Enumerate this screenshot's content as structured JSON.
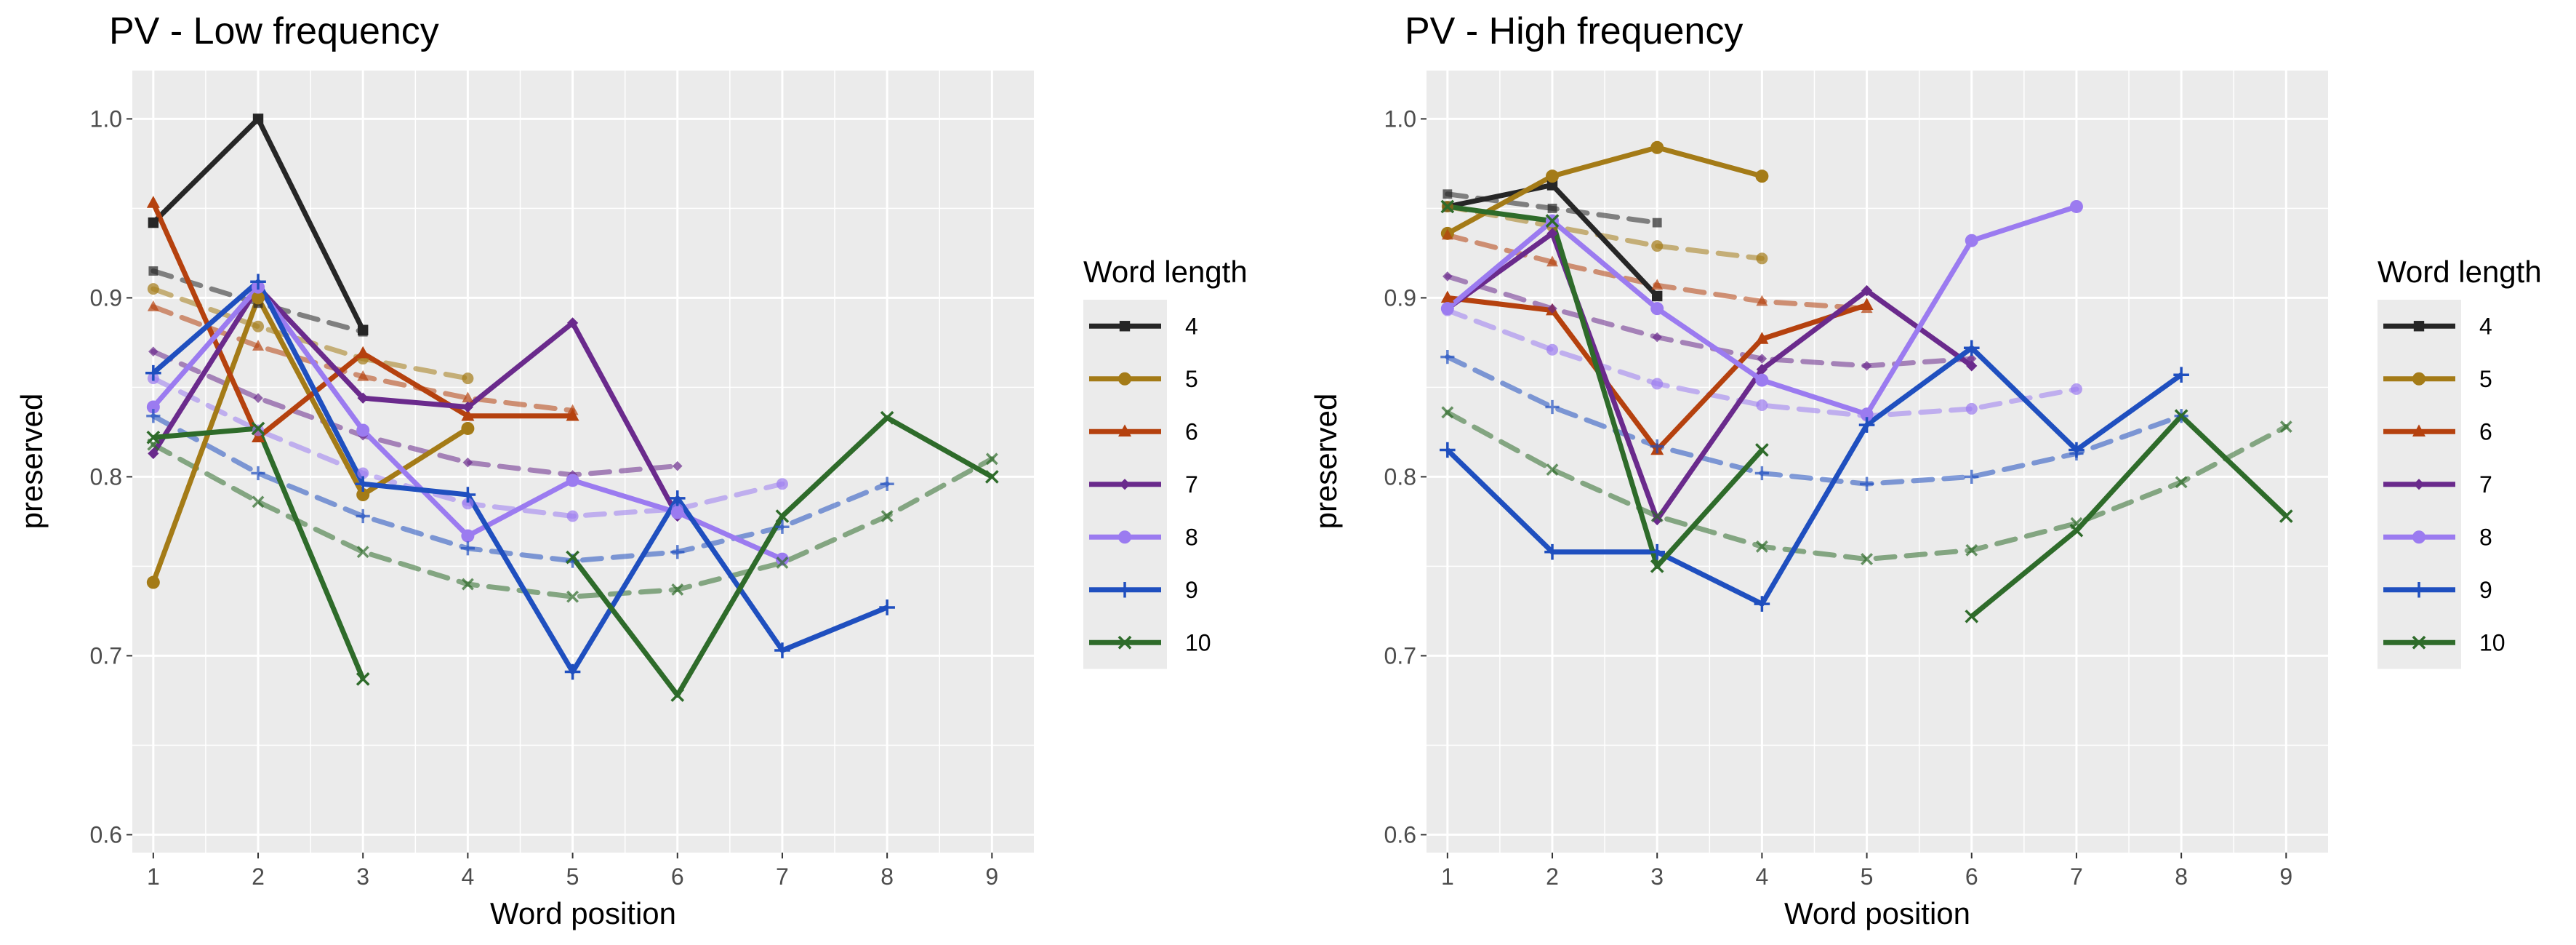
{
  "legend": {
    "title": "Word length",
    "placement": "right",
    "entries": [
      {
        "label": "4",
        "color": "#262626",
        "marker": "square"
      },
      {
        "label": "5",
        "color": "#a47b17",
        "marker": "circle"
      },
      {
        "label": "6",
        "color": "#b5410e",
        "marker": "triangle"
      },
      {
        "label": "7",
        "color": "#6a2a8c",
        "marker": "diamond"
      },
      {
        "label": "8",
        "color": "#9b7bf0",
        "marker": "circle"
      },
      {
        "label": "9",
        "color": "#1f4fbf",
        "marker": "plus"
      },
      {
        "label": "10",
        "color": "#2e6b2a",
        "marker": "cross"
      }
    ]
  },
  "chart_data": [
    {
      "type": "line",
      "title": "PV - Low frequency",
      "xlabel": "Word position",
      "ylabel": "preserved",
      "xlim": [
        0.8,
        9.4
      ],
      "ylim": [
        0.59,
        1.027
      ],
      "x_ticks": [
        1,
        2,
        3,
        4,
        5,
        6,
        7,
        8,
        9
      ],
      "y_ticks": [
        0.6,
        0.7,
        0.8,
        0.9,
        1.0
      ],
      "y_tick_labels": [
        "0.6",
        "0.7",
        "0.8",
        "0.9",
        "1.0"
      ],
      "grid": true,
      "series": [
        {
          "name": "4",
          "observed": [
            [
              1,
              0.942
            ],
            [
              2,
              1.0
            ],
            [
              3,
              0.882
            ]
          ],
          "fitted": [
            [
              1,
              0.915
            ],
            [
              2,
              0.897
            ],
            [
              3,
              0.881
            ]
          ]
        },
        {
          "name": "5",
          "observed": [
            [
              1,
              0.741
            ],
            [
              2,
              0.9
            ],
            [
              3,
              0.79
            ],
            [
              4,
              0.827
            ]
          ],
          "fitted": [
            [
              1,
              0.905
            ],
            [
              2,
              0.884
            ],
            [
              3,
              0.866
            ],
            [
              4,
              0.855
            ]
          ]
        },
        {
          "name": "6",
          "observed": [
            [
              1,
              0.953
            ],
            [
              2,
              0.822
            ],
            [
              3,
              0.869
            ],
            [
              4,
              0.834
            ],
            [
              5,
              0.834
            ]
          ],
          "fitted": [
            [
              1,
              0.895
            ],
            [
              2,
              0.873
            ],
            [
              3,
              0.856
            ],
            [
              4,
              0.844
            ],
            [
              5,
              0.837
            ]
          ]
        },
        {
          "name": "7",
          "observed": [
            [
              1,
              0.813
            ],
            [
              2,
              0.906
            ],
            [
              3,
              0.844
            ],
            [
              4,
              0.839
            ],
            [
              5,
              0.886
            ],
            [
              6,
              0.778
            ]
          ],
          "fitted": [
            [
              1,
              0.87
            ],
            [
              2,
              0.844
            ],
            [
              3,
              0.823
            ],
            [
              4,
              0.808
            ],
            [
              5,
              0.801
            ],
            [
              6,
              0.806
            ]
          ]
        },
        {
          "name": "8",
          "observed": [
            [
              1,
              0.839
            ],
            [
              2,
              0.906
            ],
            [
              3,
              0.826
            ],
            [
              4,
              0.767
            ],
            [
              5,
              0.798
            ],
            [
              6,
              0.78
            ],
            [
              7,
              0.754
            ]
          ],
          "fitted": [
            [
              1,
              0.855
            ],
            [
              2,
              0.826
            ],
            [
              3,
              0.802
            ],
            [
              4,
              0.785
            ],
            [
              5,
              0.778
            ],
            [
              6,
              0.782
            ],
            [
              7,
              0.796
            ]
          ]
        },
        {
          "name": "9",
          "observed": [
            [
              1,
              0.858
            ],
            [
              2,
              0.909
            ],
            [
              3,
              0.796
            ],
            [
              4,
              0.79
            ],
            [
              5,
              0.691
            ],
            [
              6,
              0.788
            ],
            [
              7,
              0.703
            ],
            [
              8,
              0.727
            ]
          ],
          "fitted": [
            [
              1,
              0.834
            ],
            [
              2,
              0.802
            ],
            [
              3,
              0.778
            ],
            [
              4,
              0.76
            ],
            [
              5,
              0.753
            ],
            [
              6,
              0.758
            ],
            [
              7,
              0.772
            ],
            [
              8,
              0.796
            ]
          ]
        },
        {
          "name": "10",
          "observed": [
            [
              1,
              0.822
            ],
            [
              2,
              0.827
            ],
            [
              3,
              0.687
            ],
            [
              5,
              0.755
            ],
            [
              6,
              0.678
            ],
            [
              7,
              0.778
            ],
            [
              8,
              0.833
            ],
            [
              9,
              0.8
            ]
          ],
          "fitted": [
            [
              1,
              0.818
            ],
            [
              2,
              0.786
            ],
            [
              3,
              0.758
            ],
            [
              4,
              0.74
            ],
            [
              5,
              0.733
            ],
            [
              6,
              0.737
            ],
            [
              7,
              0.752
            ],
            [
              8,
              0.778
            ],
            [
              9,
              0.81
            ]
          ]
        }
      ]
    },
    {
      "type": "line",
      "title": "PV - High frequency",
      "xlabel": "Word position",
      "ylabel": "preserved",
      "xlim": [
        0.8,
        9.4
      ],
      "ylim": [
        0.59,
        1.027
      ],
      "x_ticks": [
        1,
        2,
        3,
        4,
        5,
        6,
        7,
        8,
        9
      ],
      "y_ticks": [
        0.6,
        0.7,
        0.8,
        0.9,
        1.0
      ],
      "y_tick_labels": [
        "0.6",
        "0.7",
        "0.8",
        "0.9",
        "1.0"
      ],
      "grid": true,
      "series": [
        {
          "name": "4",
          "observed": [
            [
              1,
              0.951
            ],
            [
              2,
              0.963
            ],
            [
              3,
              0.901
            ]
          ],
          "fitted": [
            [
              1,
              0.958
            ],
            [
              2,
              0.95
            ],
            [
              3,
              0.942
            ]
          ]
        },
        {
          "name": "5",
          "observed": [
            [
              1,
              0.936
            ],
            [
              2,
              0.968
            ],
            [
              3,
              0.984
            ],
            [
              4,
              0.968
            ]
          ],
          "fitted": [
            [
              1,
              0.951
            ],
            [
              2,
              0.94
            ],
            [
              3,
              0.929
            ],
            [
              4,
              0.922
            ]
          ]
        },
        {
          "name": "6",
          "observed": [
            [
              1,
              0.9
            ],
            [
              2,
              0.893
            ],
            [
              3,
              0.815
            ],
            [
              4,
              0.877
            ],
            [
              5,
              0.896
            ]
          ],
          "fitted": [
            [
              1,
              0.935
            ],
            [
              2,
              0.92
            ],
            [
              3,
              0.907
            ],
            [
              4,
              0.898
            ],
            [
              5,
              0.894
            ]
          ]
        },
        {
          "name": "7",
          "observed": [
            [
              1,
              0.894
            ],
            [
              2,
              0.936
            ],
            [
              3,
              0.776
            ],
            [
              4,
              0.86
            ],
            [
              5,
              0.904
            ],
            [
              6,
              0.862
            ]
          ],
          "fitted": [
            [
              1,
              0.912
            ],
            [
              2,
              0.894
            ],
            [
              3,
              0.878
            ],
            [
              4,
              0.866
            ],
            [
              5,
              0.862
            ],
            [
              6,
              0.866
            ]
          ]
        },
        {
          "name": "8",
          "observed": [
            [
              1,
              0.894
            ],
            [
              2,
              0.943
            ],
            [
              3,
              0.894
            ],
            [
              4,
              0.854
            ],
            [
              5,
              0.835
            ],
            [
              6,
              0.932
            ],
            [
              7,
              0.951
            ]
          ],
          "fitted": [
            [
              1,
              0.893
            ],
            [
              2,
              0.871
            ],
            [
              3,
              0.852
            ],
            [
              4,
              0.84
            ],
            [
              5,
              0.834
            ],
            [
              6,
              0.838
            ],
            [
              7,
              0.849
            ]
          ]
        },
        {
          "name": "9",
          "observed": [
            [
              1,
              0.815
            ],
            [
              2,
              0.758
            ],
            [
              3,
              0.758
            ],
            [
              4,
              0.729
            ],
            [
              5,
              0.829
            ],
            [
              6,
              0.872
            ],
            [
              7,
              0.815
            ],
            [
              8,
              0.857
            ]
          ],
          "fitted": [
            [
              1,
              0.867
            ],
            [
              2,
              0.839
            ],
            [
              3,
              0.817
            ],
            [
              4,
              0.802
            ],
            [
              5,
              0.796
            ],
            [
              6,
              0.8
            ],
            [
              7,
              0.813
            ],
            [
              8,
              0.834
            ]
          ]
        },
        {
          "name": "10",
          "observed": [
            [
              1,
              0.951
            ],
            [
              2,
              0.943
            ],
            [
              3,
              0.75
            ],
            [
              4,
              0.815
            ],
            [
              6,
              0.722
            ],
            [
              7,
              0.77
            ],
            [
              8,
              0.834
            ],
            [
              9,
              0.778
            ]
          ],
          "fitted": [
            [
              1,
              0.836
            ],
            [
              2,
              0.804
            ],
            [
              3,
              0.778
            ],
            [
              4,
              0.761
            ],
            [
              5,
              0.754
            ],
            [
              6,
              0.759
            ],
            [
              7,
              0.774
            ],
            [
              8,
              0.797
            ],
            [
              9,
              0.828
            ]
          ]
        }
      ]
    }
  ]
}
